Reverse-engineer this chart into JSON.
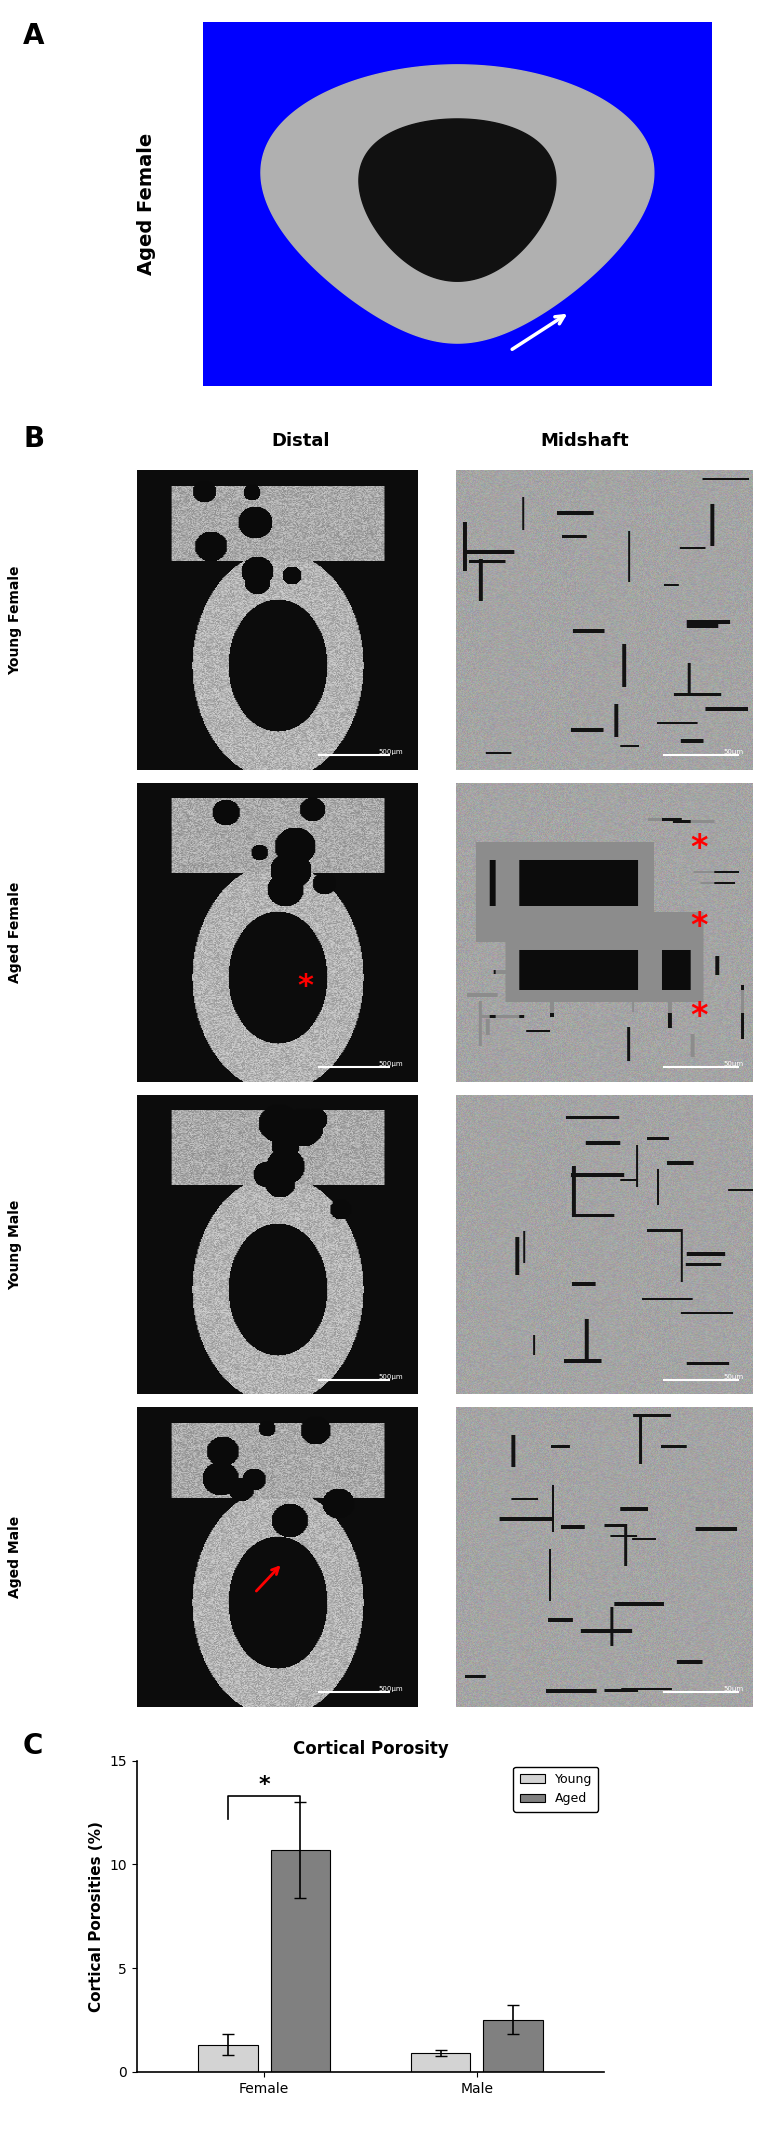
{
  "panel_labels": [
    "A",
    "B",
    "C"
  ],
  "panel_a_label": "Aged Female",
  "panel_b_col_labels": [
    "Distal",
    "Midshaft"
  ],
  "panel_b_row_labels": [
    "Young Female",
    "Aged Female",
    "Young Male",
    "Aged Male"
  ],
  "chart_title": "Cortical Porosity",
  "ylabel": "Cortical Porosities (%)",
  "categories": [
    "Female",
    "Male"
  ],
  "young_values": [
    1.3,
    0.9
  ],
  "aged_values": [
    10.7,
    2.5
  ],
  "young_errors": [
    0.5,
    0.15
  ],
  "aged_errors": [
    2.3,
    0.7
  ],
  "young_color": "#d3d3d3",
  "aged_color": "#808080",
  "ylim": [
    0,
    15
  ],
  "yticks": [
    0,
    5,
    10,
    15
  ],
  "legend_labels": [
    "Young",
    "Aged"
  ],
  "background_color": "#ffffff"
}
